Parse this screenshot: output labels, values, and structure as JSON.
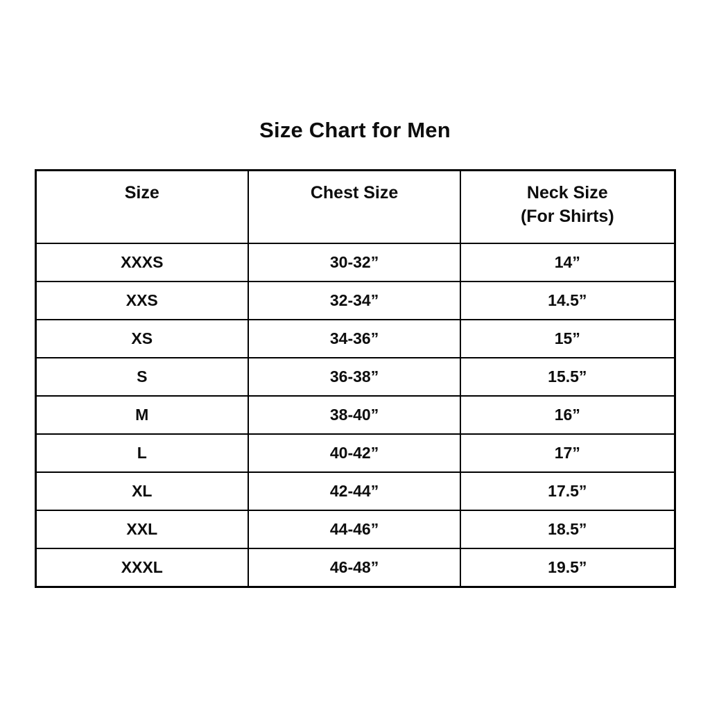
{
  "colors": {
    "background": "#ffffff",
    "border": "#000000",
    "text": "#0d0d0d"
  },
  "chart_data": {
    "type": "table",
    "title": "Size Chart for Men",
    "columns": [
      {
        "label": "Size",
        "sublabel": ""
      },
      {
        "label": "Chest Size",
        "sublabel": ""
      },
      {
        "label": "Neck Size",
        "sublabel": "(For Shirts)"
      }
    ],
    "rows": [
      [
        "XXXS",
        "30-32”",
        "14”"
      ],
      [
        "XXS",
        "32-34”",
        "14.5”"
      ],
      [
        "XS",
        "34-36”",
        "15”"
      ],
      [
        "S",
        "36-38”",
        "15.5”"
      ],
      [
        "M",
        "38-40”",
        "16”"
      ],
      [
        "L",
        "40-42”",
        "17”"
      ],
      [
        "XL",
        "42-44”",
        "17.5”"
      ],
      [
        "XXL",
        "44-46”",
        "18.5”"
      ],
      [
        "XXXL",
        "46-48”",
        "19.5”"
      ]
    ]
  }
}
